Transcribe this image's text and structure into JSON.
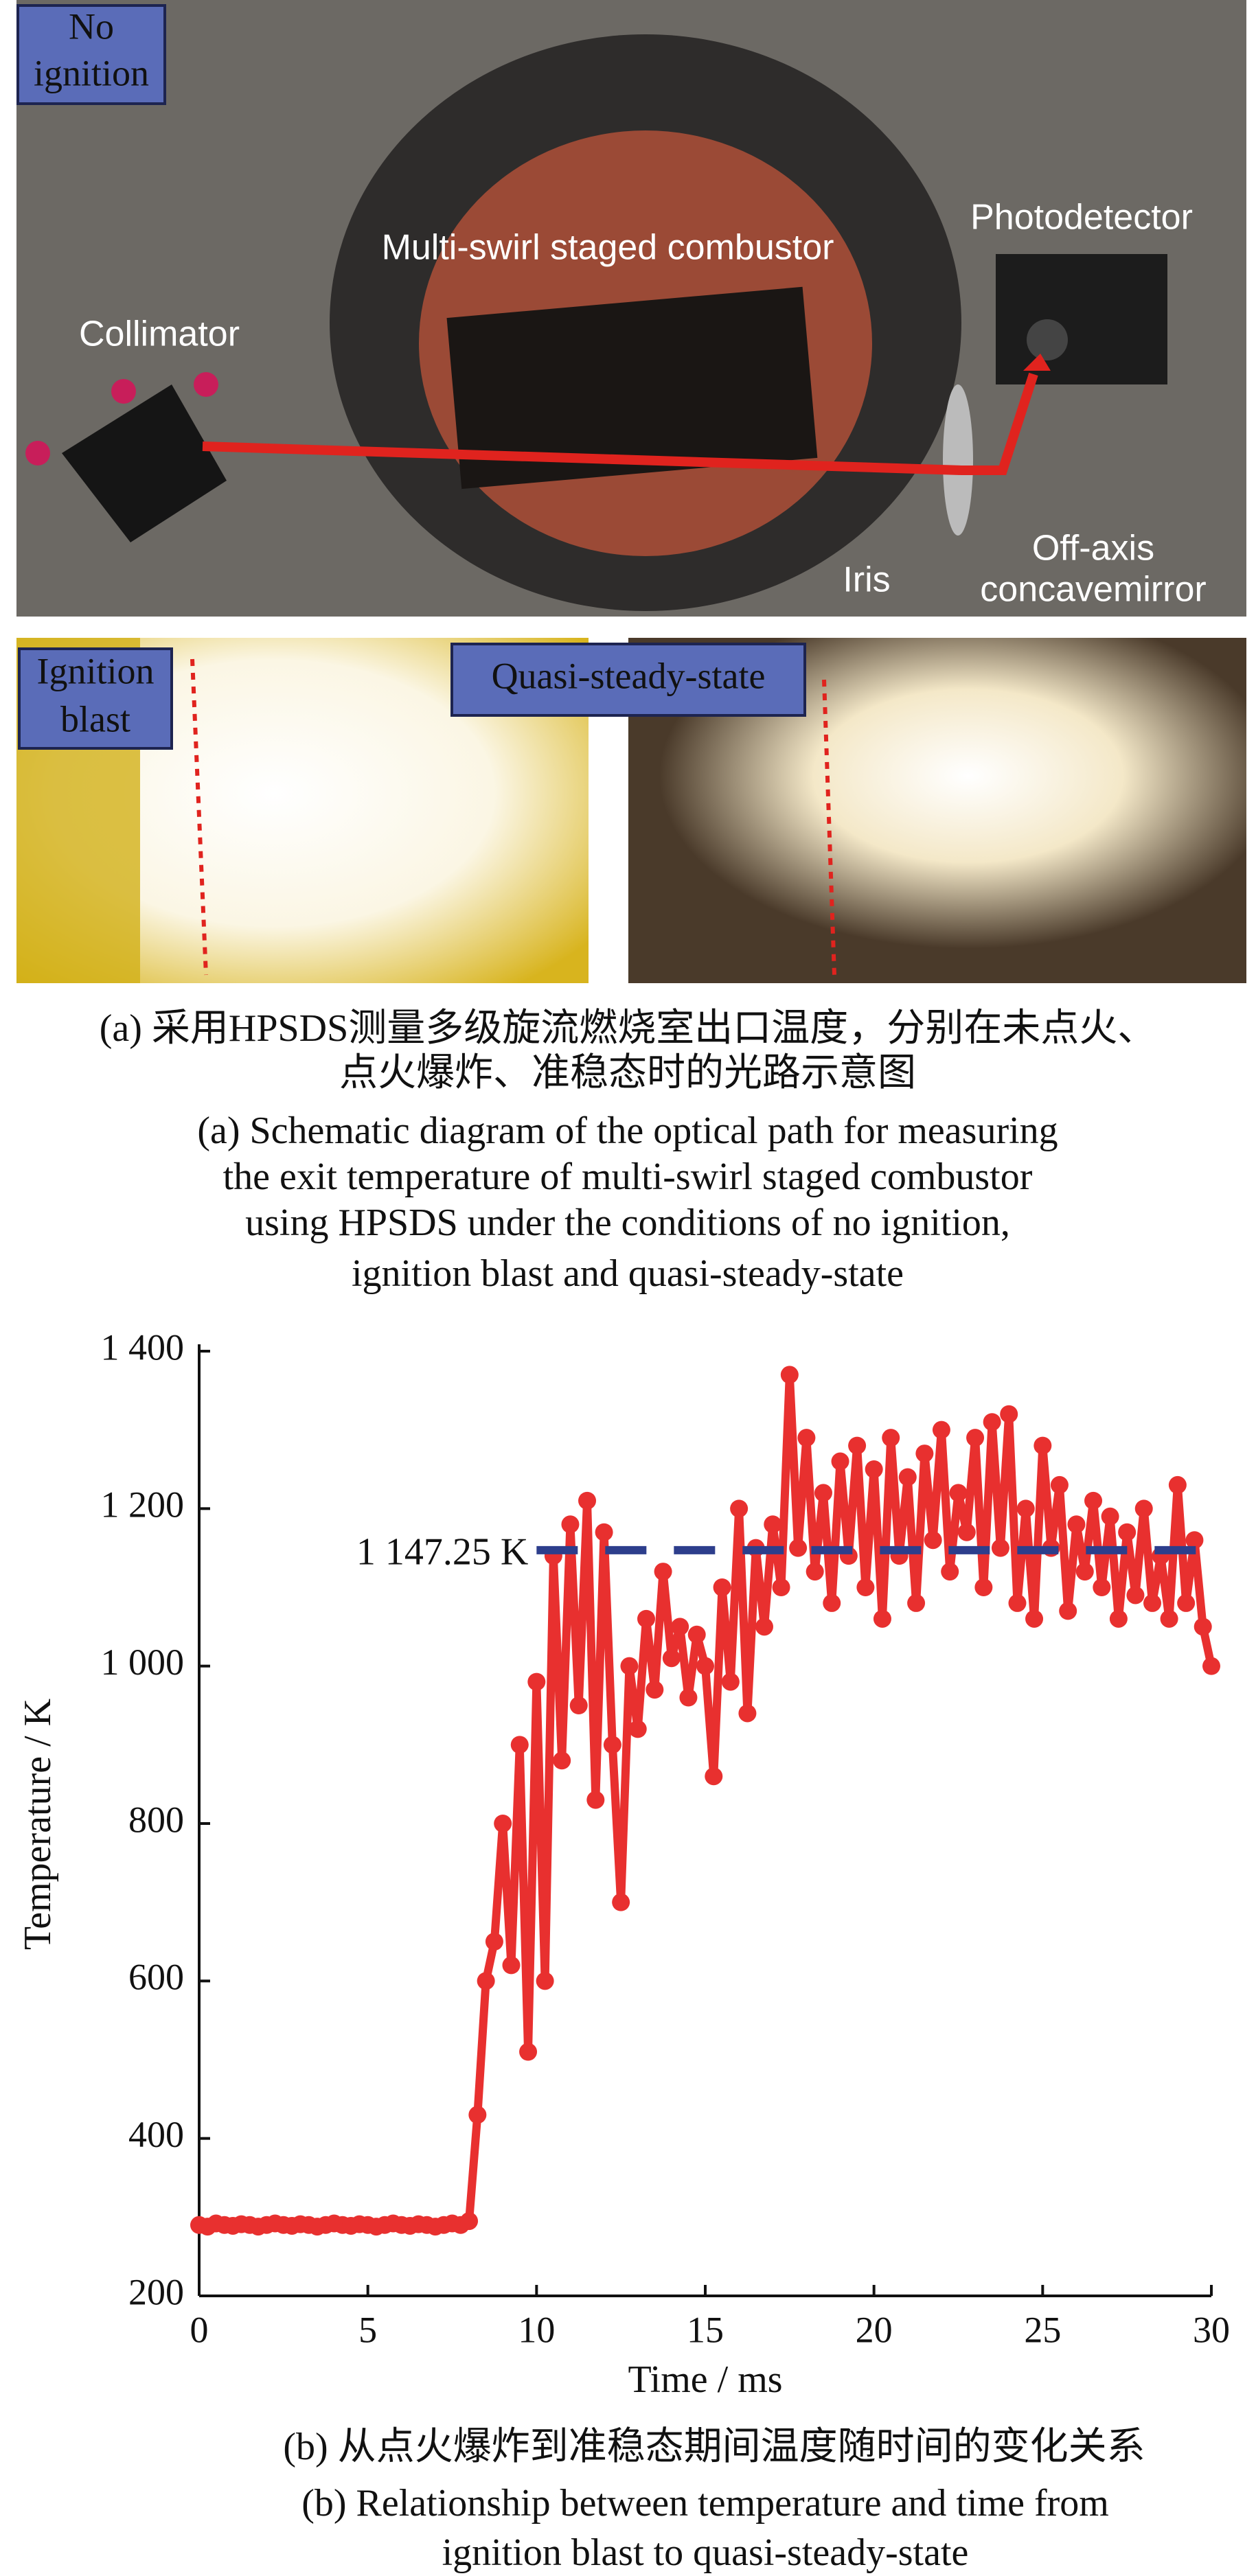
{
  "photo_labels": {
    "no_ignition": [
      "No",
      "ignition"
    ],
    "combustor": "Multi-swirl staged combustor",
    "photodetector": "Photodetector",
    "collimator": "Collimator",
    "iris": "Iris",
    "mirror": [
      "Off-axis",
      "concavemirror"
    ],
    "ignition_blast": [
      "Ignition",
      "blast"
    ],
    "quasi_steady": "Quasi-steady-state"
  },
  "caption_a": {
    "zh": [
      "(a) 采用HPSDS测量多级旋流燃烧室出口温度，分别在未点火、",
      "点火爆炸、准稳态时的光路示意图"
    ],
    "en": [
      "(a) Schematic diagram of the optical path for measuring",
      "the exit temperature of multi-swirl staged combustor",
      "using HPSDS under the conditions of no ignition,",
      "ignition blast and quasi-steady-state"
    ]
  },
  "chart_data": {
    "type": "line",
    "xlabel": "Time / ms",
    "ylabel": "Temperature / K",
    "xlim": [
      0,
      30
    ],
    "xticks": [
      0,
      5,
      10,
      15,
      20,
      25,
      30
    ],
    "ylim": [
      200,
      1400
    ],
    "yticks": [
      200,
      400,
      600,
      800,
      {
        "value": 1000,
        "label": "1 000"
      },
      {
        "value": 1200,
        "label": "1 200"
      },
      {
        "value": 1400,
        "label": "1 400"
      }
    ],
    "reference": {
      "value": 1147.25,
      "label": "1 147.25 K",
      "x_range": [
        10,
        30
      ],
      "color": "#2d3e8c"
    },
    "x": [
      0,
      0.25,
      0.5,
      0.75,
      1,
      1.25,
      1.5,
      1.75,
      2,
      2.25,
      2.5,
      2.75,
      3,
      3.25,
      3.5,
      3.75,
      4,
      4.25,
      4.5,
      4.75,
      5,
      5.25,
      5.5,
      5.75,
      6,
      6.25,
      6.5,
      6.75,
      7,
      7.25,
      7.5,
      7.75,
      8,
      8.25,
      8.5,
      8.75,
      9,
      9.25,
      9.5,
      9.75,
      10,
      10.25,
      10.5,
      10.75,
      11,
      11.25,
      11.5,
      11.75,
      12,
      12.25,
      12.5,
      12.75,
      13,
      13.25,
      13.5,
      13.75,
      14,
      14.25,
      14.5,
      14.75,
      15,
      15.25,
      15.5,
      15.75,
      16,
      16.25,
      16.5,
      16.75,
      17,
      17.25,
      17.5,
      17.75,
      18,
      18.25,
      18.5,
      18.75,
      19,
      19.25,
      19.5,
      19.75,
      20,
      20.25,
      20.5,
      20.75,
      21,
      21.25,
      21.5,
      21.75,
      22,
      22.25,
      22.5,
      22.75,
      23,
      23.25,
      23.5,
      23.75,
      24,
      24.25,
      24.5,
      24.75,
      25,
      25.25,
      25.5,
      25.75,
      26,
      26.25,
      26.5,
      26.75,
      27,
      27.25,
      27.5,
      27.75,
      28,
      28.25,
      28.5,
      28.75,
      29,
      29.25,
      29.5,
      29.75,
      30
    ],
    "series": [
      {
        "color": "#e8302f",
        "values": [
          290,
          288,
          292,
          290,
          289,
          291,
          290,
          288,
          290,
          292,
          290,
          289,
          291,
          290,
          288,
          290,
          292,
          290,
          289,
          291,
          290,
          288,
          290,
          292,
          290,
          289,
          291,
          290,
          288,
          290,
          292,
          290,
          295,
          430,
          600,
          650,
          800,
          620,
          900,
          510,
          980,
          600,
          1140,
          880,
          1180,
          950,
          1210,
          830,
          1170,
          900,
          700,
          1000,
          920,
          1060,
          970,
          1120,
          1010,
          1050,
          960,
          1040,
          1000,
          860,
          1100,
          980,
          1200,
          940,
          1150,
          1050,
          1180,
          1100,
          1370,
          1150,
          1290,
          1120,
          1220,
          1080,
          1260,
          1140,
          1280,
          1100,
          1250,
          1060,
          1290,
          1140,
          1240,
          1080,
          1270,
          1160,
          1300,
          1120,
          1220,
          1170,
          1290,
          1100,
          1310,
          1150,
          1320,
          1080,
          1200,
          1060,
          1280,
          1150,
          1230,
          1070,
          1180,
          1120,
          1210,
          1100,
          1190,
          1060,
          1170,
          1090,
          1200,
          1080,
          1140,
          1060,
          1230,
          1080,
          1160,
          1050,
          1000
        ]
      }
    ]
  },
  "caption_b": {
    "zh": "(b) 从点火爆炸到准稳态期间温度随时间的变化关系",
    "en": [
      "(b) Relationship between temperature and time from",
      "ignition blast to quasi-steady-state"
    ]
  }
}
